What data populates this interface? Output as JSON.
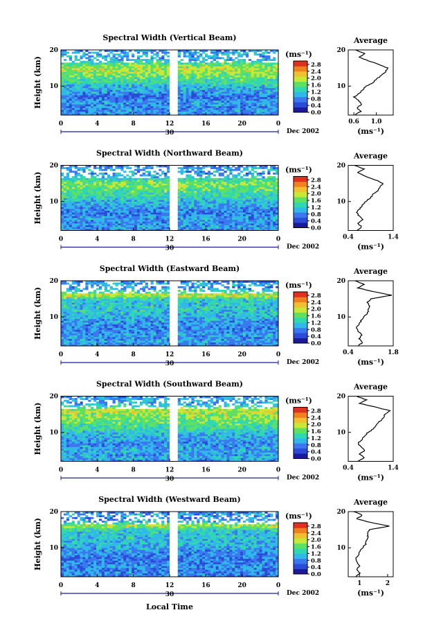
{
  "figure": {
    "colorbar_ticks": [
      "2.8",
      "2.4",
      "2.0",
      "1.6",
      "1.2",
      "0.8",
      "0.4",
      "0.0"
    ],
    "colormap": [
      "#1a1a9a",
      "#2a4ad8",
      "#3a78f0",
      "#30b8e8",
      "#30d8b0",
      "#60e060",
      "#c8e838",
      "#f0c030",
      "#f08020",
      "#e03020"
    ],
    "date_label": "Dec 2002",
    "day_label": "30",
    "xlabel": "Local Time"
  },
  "chart_data": [
    {
      "type": "heatmap",
      "title": "Spectral Width (Vertical Beam)",
      "ylabel": "Height (km)",
      "x_ticks": [
        "0",
        "4",
        "8",
        "12",
        "16",
        "20",
        "0"
      ],
      "y_ticks": [
        "20",
        "10"
      ],
      "xlim": [
        0,
        24
      ],
      "ylim": [
        2,
        20
      ],
      "data_gap_hours": [
        12,
        12.8
      ],
      "colorbar_unit": "(ms⁻¹)",
      "colorbar_range": [
        0.0,
        3.0
      ],
      "profile": {
        "title": "Average",
        "xlabel": "(ms⁻¹)",
        "x_ticks": [
          "0.6",
          "1.0"
        ],
        "xlim": [
          0.5,
          1.3
        ],
        "heights": [
          2,
          3,
          4,
          5,
          6,
          7,
          8,
          9,
          10,
          11,
          12,
          13,
          14,
          15,
          16,
          17,
          18,
          19,
          20
        ],
        "values": [
          0.62,
          0.72,
          0.66,
          0.74,
          0.68,
          0.6,
          0.7,
          0.76,
          0.82,
          0.95,
          1.0,
          1.1,
          1.16,
          1.2,
          1.05,
          0.85,
          0.7,
          0.8,
          0.62
        ]
      }
    },
    {
      "type": "heatmap",
      "title": "Spectral Width (Northward Beam)",
      "ylabel": "Height (km)",
      "x_ticks": [
        "0",
        "4",
        "8",
        "12",
        "16",
        "20",
        "0"
      ],
      "y_ticks": [
        "20",
        "10"
      ],
      "xlim": [
        0,
        24
      ],
      "ylim": [
        2,
        20
      ],
      "data_gap_hours": [
        12,
        12.8
      ],
      "colorbar_unit": "(ms⁻¹)",
      "colorbar_range": [
        0.0,
        3.0
      ],
      "profile": {
        "title": "Average",
        "xlabel": "(ms⁻¹)",
        "x_ticks": [
          "0.4",
          "1.4"
        ],
        "xlim": [
          0.4,
          1.4
        ],
        "heights": [
          2,
          3,
          4,
          5,
          6,
          7,
          8,
          9,
          10,
          11,
          12,
          13,
          14,
          15,
          16,
          17,
          18,
          19,
          20
        ],
        "values": [
          0.58,
          0.7,
          0.62,
          0.72,
          0.64,
          0.58,
          0.66,
          0.72,
          0.78,
          0.9,
          0.95,
          1.05,
          1.1,
          1.18,
          1.0,
          0.78,
          0.62,
          0.75,
          0.55
        ]
      }
    },
    {
      "type": "heatmap",
      "title": "Spectral Width (Eastward Beam)",
      "ylabel": "Height (km)",
      "x_ticks": [
        "0",
        "4",
        "8",
        "12",
        "16",
        "20",
        "0"
      ],
      "y_ticks": [
        "20",
        "10"
      ],
      "xlim": [
        0,
        24
      ],
      "ylim": [
        2,
        20
      ],
      "data_gap_hours": [
        12,
        12.8
      ],
      "colorbar_unit": "(ms⁻¹)",
      "colorbar_range": [
        0.0,
        3.0
      ],
      "profile": {
        "title": "Average",
        "xlabel": "(ms⁻¹)",
        "x_ticks": [
          "0.4",
          "1.8"
        ],
        "xlim": [
          0.4,
          1.8
        ],
        "heights": [
          2,
          3,
          4,
          5,
          6,
          7,
          8,
          9,
          10,
          11,
          12,
          13,
          14,
          15,
          16,
          17,
          18,
          19,
          20
        ],
        "values": [
          0.7,
          0.85,
          0.75,
          0.82,
          0.72,
          0.66,
          0.74,
          0.8,
          0.88,
          1.0,
          1.02,
          1.05,
          1.0,
          1.1,
          1.75,
          1.2,
          0.7,
          0.9,
          0.6
        ]
      }
    },
    {
      "type": "heatmap",
      "title": "Spectral Width (Southward Beam)",
      "ylabel": "Height (km)",
      "x_ticks": [
        "0",
        "4",
        "8",
        "12",
        "16",
        "20",
        "0"
      ],
      "y_ticks": [
        "20",
        "10"
      ],
      "xlim": [
        0,
        24
      ],
      "ylim": [
        2,
        20
      ],
      "data_gap_hours": [
        12,
        12.8
      ],
      "colorbar_unit": "(ms⁻¹)",
      "colorbar_range": [
        0.0,
        3.0
      ],
      "profile": {
        "title": "Average",
        "xlabel": "(ms⁻¹)",
        "x_ticks": [
          "0.4",
          "1.4"
        ],
        "xlim": [
          0.4,
          1.4
        ],
        "heights": [
          2,
          3,
          4,
          5,
          6,
          7,
          8,
          9,
          10,
          11,
          12,
          13,
          14,
          15,
          16,
          17,
          18,
          19,
          20
        ],
        "values": [
          0.62,
          0.76,
          0.66,
          0.76,
          0.68,
          0.62,
          0.7,
          0.76,
          0.84,
          0.96,
          1.02,
          1.1,
          1.18,
          1.22,
          1.32,
          1.0,
          0.66,
          0.8,
          0.58
        ]
      }
    },
    {
      "type": "heatmap",
      "title": "Spectral Width (Westward Beam)",
      "ylabel": "Height (km)",
      "x_ticks": [
        "0",
        "4",
        "8",
        "12",
        "16",
        "20",
        "0"
      ],
      "y_ticks": [
        "20",
        "10"
      ],
      "xlim": [
        0,
        24
      ],
      "ylim": [
        2,
        20
      ],
      "data_gap_hours": [
        12,
        12.8
      ],
      "colorbar_unit": "(ms⁻¹)",
      "colorbar_range": [
        0.0,
        3.0
      ],
      "profile": {
        "title": "Average",
        "xlabel": "(ms⁻¹)",
        "x_ticks": [
          "1",
          "2"
        ],
        "xlim": [
          0.6,
          2.2
        ],
        "heights": [
          2,
          3,
          4,
          5,
          6,
          7,
          8,
          9,
          10,
          11,
          12,
          13,
          14,
          15,
          16,
          17,
          18,
          19,
          20
        ],
        "values": [
          0.85,
          1.0,
          0.9,
          1.0,
          0.92,
          0.86,
          0.95,
          1.02,
          1.1,
          1.22,
          1.25,
          1.3,
          1.28,
          1.35,
          2.05,
          1.4,
          0.9,
          1.1,
          0.8
        ]
      }
    }
  ]
}
